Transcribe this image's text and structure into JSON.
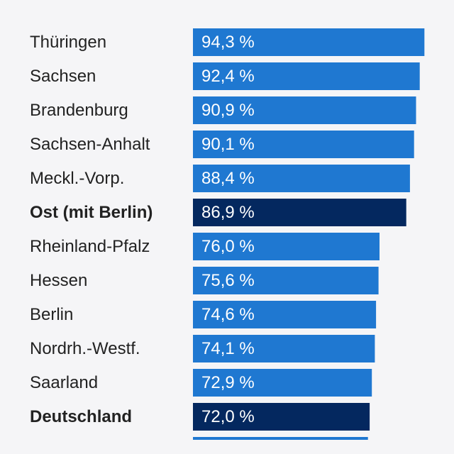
{
  "chart_data": {
    "type": "bar",
    "orientation": "horizontal",
    "categories": [
      "Thüringen",
      "Sachsen",
      "Brandenburg",
      "Sachsen-Anhalt",
      "Meckl.-Vorp.",
      "Ost (mit Berlin)",
      "Rheinland-Pfalz",
      "Hessen",
      "Berlin",
      "Nordrh.-Westf.",
      "Saarland",
      "Deutschland"
    ],
    "values": [
      94.3,
      92.4,
      90.9,
      90.1,
      88.4,
      86.9,
      76.0,
      75.6,
      74.6,
      74.1,
      72.9,
      72.0
    ],
    "labels": [
      "94,3 %",
      "92,4 %",
      "90,9 %",
      "90,1 %",
      "88,4 %",
      "86,9 %",
      "76,0 %",
      "75,6 %",
      "74,6 %",
      "74,1 %",
      "72,9 %",
      "72,0 %"
    ],
    "highlighted": [
      "Ost (mit Berlin)",
      "Deutschland"
    ],
    "colors": {
      "bar": "#1f78d1",
      "highlight": "#04285f",
      "label_text": "#ffffff",
      "category_text": "#222222",
      "background": "#f5f5f7"
    },
    "xlim": [
      0,
      100
    ],
    "title": "",
    "xlabel": "",
    "ylabel": ""
  }
}
